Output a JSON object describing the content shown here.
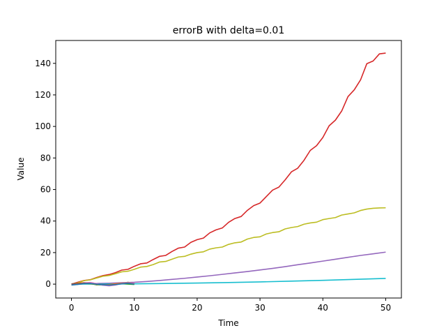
{
  "chart_data": {
    "type": "line",
    "title": "errorB with delta=0.01",
    "xlabel": "Time",
    "ylabel": "Value",
    "xlim": [
      -2.5,
      52.5
    ],
    "ylim": [
      -8.8,
      154.5
    ],
    "xticks": [
      0,
      10,
      20,
      30,
      40,
      50
    ],
    "yticks": [
      0,
      20,
      40,
      60,
      80,
      100,
      120,
      140
    ],
    "grid": false,
    "legend": "none",
    "series": [
      {
        "color": "#d62728",
        "x": [
          0,
          1,
          2,
          3,
          4,
          5,
          6,
          7,
          8,
          9,
          10,
          11,
          12,
          13,
          14,
          15,
          16,
          17,
          18,
          19,
          20,
          21,
          22,
          23,
          24,
          25,
          26,
          27,
          28,
          29,
          30,
          31,
          32,
          33,
          34,
          35,
          36,
          37,
          38,
          39,
          40,
          41,
          42,
          43,
          44,
          45,
          46,
          47,
          48,
          49,
          50
        ],
        "values": [
          0,
          1.2,
          2.3,
          2.8,
          4.2,
          5.4,
          6.1,
          7.3,
          8.9,
          9.4,
          11.3,
          12.9,
          13.4,
          15.6,
          17.6,
          18.2,
          20.7,
          22.8,
          23.5,
          26.5,
          28.2,
          29.2,
          32.5,
          34.4,
          35.6,
          39.2,
          41.6,
          42.9,
          46.8,
          49.8,
          51.4,
          55.5,
          59.6,
          61.5,
          66.1,
          71.2,
          73.5,
          78.5,
          84.8,
          87.8,
          93.0,
          100.4,
          104.0,
          109.8,
          118.9,
          123.2,
          129.5,
          139.8,
          141.5,
          146.0,
          146.5
        ]
      },
      {
        "color": "#bcbd22",
        "x": [
          0,
          1,
          2,
          3,
          4,
          5,
          6,
          7,
          8,
          9,
          10,
          11,
          12,
          13,
          14,
          15,
          16,
          17,
          18,
          19,
          20,
          21,
          22,
          23,
          24,
          25,
          26,
          27,
          28,
          29,
          30,
          31,
          32,
          33,
          34,
          35,
          36,
          37,
          38,
          39,
          40,
          41,
          42,
          43,
          44,
          45,
          46,
          47,
          48,
          49,
          50
        ],
        "values": [
          0,
          0.8,
          2.2,
          2.7,
          3.9,
          5.0,
          5.5,
          6.6,
          7.8,
          8.2,
          9.4,
          10.8,
          11.2,
          12.4,
          14.0,
          14.4,
          15.8,
          17.2,
          17.6,
          19.0,
          20.0,
          20.5,
          22.2,
          23.0,
          23.5,
          25.2,
          26.2,
          26.7,
          28.6,
          29.6,
          30.0,
          31.8,
          32.7,
          33.2,
          35.0,
          35.9,
          36.5,
          38.0,
          38.8,
          39.3,
          40.9,
          41.6,
          42.2,
          43.8,
          44.5,
          45.2,
          46.7,
          47.6,
          48.1,
          48.3,
          48.4
        ]
      },
      {
        "color": "#9467bd",
        "x": [
          0,
          2,
          4,
          6,
          8,
          10,
          12,
          14,
          16,
          18,
          20,
          22,
          24,
          26,
          28,
          30,
          32,
          34,
          36,
          38,
          40,
          42,
          44,
          46,
          48,
          50
        ],
        "values": [
          0,
          0.2,
          0.4,
          0.6,
          0.9,
          1.2,
          1.7,
          2.3,
          3.0,
          3.7,
          4.5,
          5.3,
          6.2,
          7.1,
          8.0,
          9.0,
          10.0,
          11.1,
          12.3,
          13.4,
          14.6,
          15.8,
          17.0,
          18.2,
          19.2,
          20.3
        ]
      },
      {
        "color": "#17becf",
        "x": [
          0,
          5,
          10,
          15,
          20,
          25,
          30,
          35,
          40,
          45,
          50
        ],
        "values": [
          0,
          0.1,
          0.2,
          0.4,
          0.7,
          1.0,
          1.4,
          1.9,
          2.4,
          3.0,
          3.6
        ]
      },
      {
        "color": "#7f7f7f",
        "x": [
          0,
          1,
          2,
          3,
          4,
          5,
          6,
          7,
          8,
          9,
          10
        ],
        "values": [
          -0.2,
          0.5,
          1.0,
          0.6,
          -0.5,
          -0.2,
          -0.8,
          -0.3,
          0.5,
          1.2,
          0.2
        ]
      },
      {
        "color": "#2ca02c",
        "x": [
          0,
          1,
          2,
          3,
          4,
          5,
          6,
          7,
          8,
          9,
          10
        ],
        "values": [
          -0.5,
          -0.1,
          0.4,
          0.2,
          -0.3,
          -0.6,
          -0.4,
          0.1,
          0.3,
          0.0,
          -0.2
        ]
      },
      {
        "color": "#ff7f0e",
        "x": [
          0,
          1,
          2,
          3,
          4,
          5,
          6,
          7,
          8,
          9,
          10
        ],
        "values": [
          -0.3,
          0.6,
          0.9,
          0.4,
          -0.1,
          -0.5,
          -0.3,
          0.2,
          0.6,
          0.9,
          0.4
        ]
      },
      {
        "color": "#e377c2",
        "x": [
          0,
          1,
          2,
          3,
          4,
          5,
          6,
          7,
          8,
          9,
          10
        ],
        "values": [
          -0.4,
          0.0,
          0.8,
          1.1,
          0.3,
          -0.7,
          -1.1,
          -0.6,
          0.4,
          1.0,
          0.5
        ]
      },
      {
        "color": "#8c564b",
        "x": [
          0,
          1,
          2,
          3,
          4,
          5,
          6,
          7,
          8,
          9,
          10
        ],
        "values": [
          0.2,
          0.4,
          0.6,
          0.5,
          0.0,
          -0.3,
          -0.5,
          -0.2,
          0.3,
          0.7,
          0.1
        ]
      },
      {
        "color": "#1f77b4",
        "x": [
          0,
          1,
          2,
          3,
          4,
          5,
          6,
          7,
          8,
          9,
          10
        ],
        "values": [
          -0.6,
          -0.2,
          0.3,
          0.4,
          0.0,
          -0.4,
          -0.7,
          -0.3,
          0.2,
          0.5,
          0.0
        ]
      }
    ]
  }
}
